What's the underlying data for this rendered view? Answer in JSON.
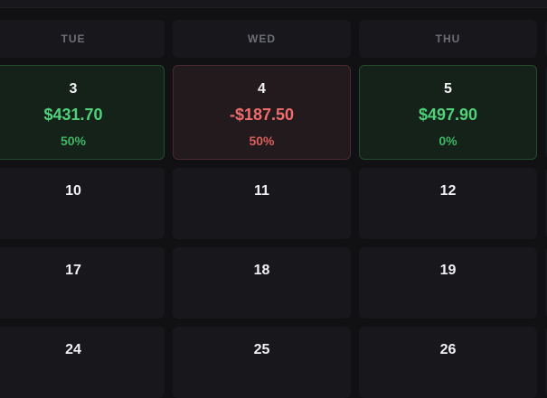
{
  "headers": [
    "TUE",
    "WED",
    "THU"
  ],
  "weeks": [
    [
      {
        "day": "3",
        "pnl": "$431.70",
        "pct": "50%",
        "status": "positive"
      },
      {
        "day": "4",
        "pnl": "-$187.50",
        "pct": "50%",
        "status": "negative"
      },
      {
        "day": "5",
        "pnl": "$497.90",
        "pct": "0%",
        "status": "positive"
      }
    ],
    [
      {
        "day": "10"
      },
      {
        "day": "11"
      },
      {
        "day": "12"
      }
    ],
    [
      {
        "day": "17"
      },
      {
        "day": "18"
      },
      {
        "day": "19"
      }
    ],
    [
      {
        "day": "24"
      },
      {
        "day": "25"
      },
      {
        "day": "26"
      }
    ]
  ],
  "colors": {
    "positive": "#4fd27a",
    "negative": "#f16d6d",
    "background": "#111114",
    "cell": "#18181c"
  }
}
